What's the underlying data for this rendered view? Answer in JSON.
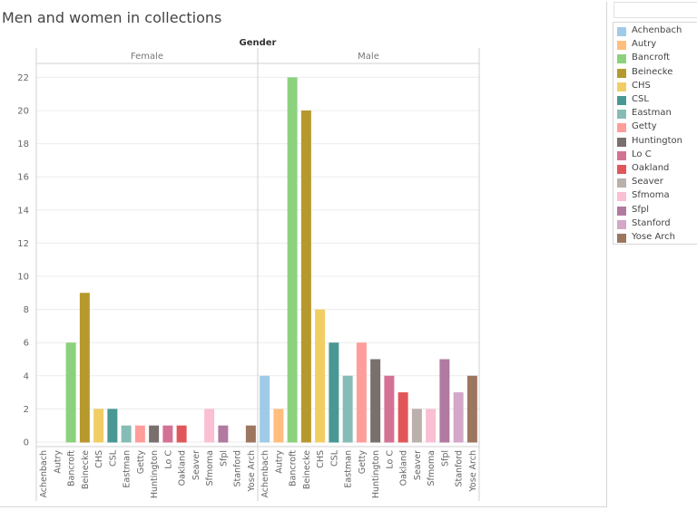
{
  "page": {
    "title": "Men and women in collections"
  },
  "chart_data": {
    "type": "bar",
    "title": "Men and women in collections",
    "column_header": "Gender",
    "panels": [
      "Female",
      "Male"
    ],
    "categories": [
      "Achenbach",
      "Autry",
      "Bancroft",
      "Beinecke",
      "CHS",
      "CSL",
      "Eastman",
      "Getty",
      "Huntington",
      "Lo C",
      "Oakland",
      "Seaver",
      "Sfmoma",
      "Sfpl",
      "Stanford",
      "Yose Arch"
    ],
    "colors": [
      "#a0cbe8",
      "#ffbe7d",
      "#8cd17d",
      "#b6992d",
      "#f1ce63",
      "#499894",
      "#86bcb6",
      "#ff9d9a",
      "#79706e",
      "#d37295",
      "#e15759",
      "#bab0ac",
      "#fabfd2",
      "#b07aa1",
      "#d4a6c8",
      "#9d7660"
    ],
    "series": [
      {
        "name": "Female",
        "values": [
          0,
          0,
          6,
          9,
          2,
          2,
          1,
          1,
          1,
          1,
          1,
          0,
          2,
          1,
          0,
          1
        ]
      },
      {
        "name": "Male",
        "values": [
          4,
          2,
          22,
          20,
          8,
          6,
          4,
          6,
          5,
          4,
          3,
          2,
          2,
          5,
          3,
          4
        ]
      }
    ],
    "yticks": [
      0,
      2,
      4,
      6,
      8,
      10,
      12,
      14,
      16,
      18,
      20,
      22
    ],
    "ylim": [
      0,
      22.5
    ],
    "grid": true,
    "legend_position": "right"
  }
}
